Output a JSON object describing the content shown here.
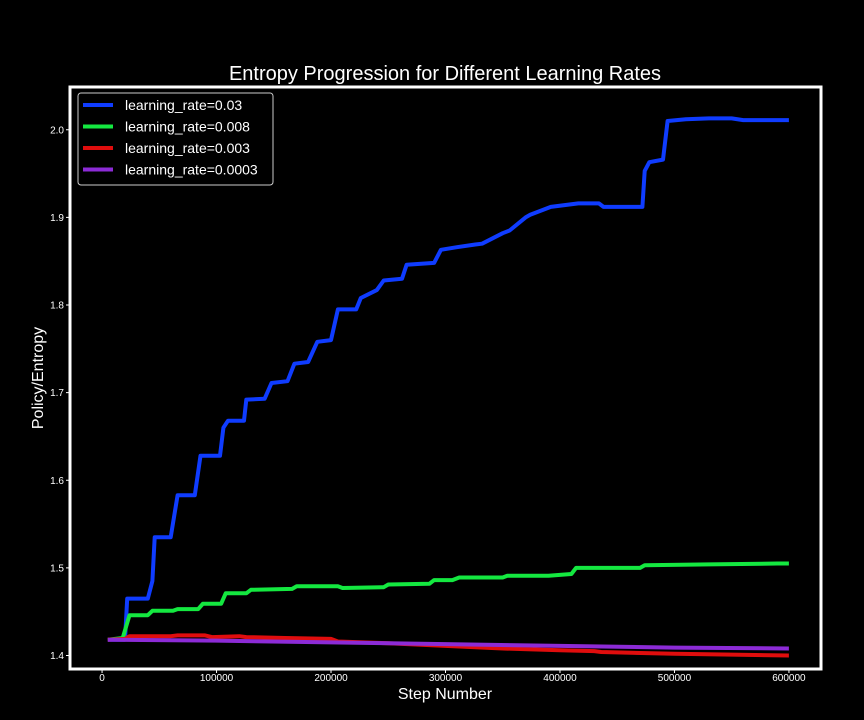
{
  "chart_data": {
    "type": "line",
    "title": "Entropy Progression for Different Learning Rates",
    "xlabel": "Step Number",
    "ylabel": "Policy/Entropy",
    "xlim": [
      -28000,
      628000
    ],
    "ylim": [
      1.3846,
      2.0488
    ],
    "xticks": [
      0,
      100000,
      200000,
      300000,
      400000,
      500000,
      600000
    ],
    "yticks": [
      1.4,
      1.5,
      1.6,
      1.7,
      1.8,
      1.9,
      2.0
    ],
    "grid": false,
    "legend_position": "top-left",
    "background_color": "#000000",
    "text_color": "#ffffff",
    "series": [
      {
        "name": "learning_rate=0.03",
        "color": "#0f3cff",
        "x": [
          5000,
          20000,
          22000,
          40000,
          44000,
          46000,
          60000,
          66000,
          81000,
          86000,
          103000,
          106000,
          110000,
          124000,
          126000,
          142000,
          148000,
          162000,
          168000,
          180000,
          188000,
          200000,
          206000,
          222000,
          226000,
          240000,
          246000,
          262000,
          266000,
          290000,
          296000,
          310000,
          326000,
          332000,
          350000,
          356000,
          370000,
          374000,
          392000,
          416000,
          434000,
          438000,
          472000,
          474000,
          478000,
          490000,
          494000,
          510000,
          530000,
          550000,
          560000,
          600000
        ],
        "y": [
          1.418,
          1.418,
          1.465,
          1.465,
          1.485,
          1.535,
          1.535,
          1.583,
          1.583,
          1.628,
          1.628,
          1.66,
          1.668,
          1.668,
          1.692,
          1.693,
          1.711,
          1.713,
          1.733,
          1.735,
          1.758,
          1.76,
          1.795,
          1.795,
          1.808,
          1.817,
          1.828,
          1.83,
          1.846,
          1.848,
          1.863,
          1.866,
          1.869,
          1.87,
          1.882,
          1.885,
          1.9,
          1.903,
          1.912,
          1.916,
          1.916,
          1.912,
          1.912,
          1.953,
          1.963,
          1.966,
          2.01,
          2.012,
          2.013,
          2.013,
          2.011,
          2.011
        ]
      },
      {
        "name": "learning_rate=0.008",
        "color": "#14e840",
        "x": [
          5000,
          18000,
          24000,
          40000,
          44000,
          62000,
          66000,
          84000,
          88000,
          104000,
          108000,
          126000,
          130000,
          166000,
          170000,
          206000,
          210000,
          246000,
          250000,
          286000,
          290000,
          306000,
          312000,
          350000,
          354000,
          390000,
          410000,
          414000,
          470000,
          474000,
          530000,
          590000,
          600000
        ],
        "y": [
          1.418,
          1.42,
          1.446,
          1.446,
          1.451,
          1.451,
          1.453,
          1.453,
          1.459,
          1.459,
          1.471,
          1.471,
          1.475,
          1.476,
          1.479,
          1.479,
          1.477,
          1.478,
          1.481,
          1.482,
          1.486,
          1.486,
          1.489,
          1.489,
          1.491,
          1.491,
          1.493,
          1.5,
          1.5,
          1.503,
          1.504,
          1.505,
          1.505
        ],
        "comment": ""
      },
      {
        "name": "learning_rate=0.003",
        "color": "#e00d0d",
        "x": [
          5000,
          20000,
          24000,
          60000,
          66000,
          90000,
          96000,
          120000,
          126000,
          160000,
          200000,
          206000,
          250000,
          300000,
          350000,
          400000,
          430000,
          436000,
          500000,
          550000,
          600000
        ],
        "y": [
          1.418,
          1.419,
          1.422,
          1.422,
          1.423,
          1.423,
          1.421,
          1.422,
          1.421,
          1.42,
          1.419,
          1.416,
          1.414,
          1.411,
          1.408,
          1.406,
          1.405,
          1.404,
          1.402,
          1.401,
          1.4
        ]
      },
      {
        "name": "learning_rate=0.0003",
        "color": "#8c2bd6",
        "x": [
          5000,
          100000,
          200000,
          300000,
          400000,
          500000,
          600000
        ],
        "y": [
          1.418,
          1.417,
          1.415,
          1.413,
          1.411,
          1.409,
          1.408
        ]
      }
    ]
  }
}
